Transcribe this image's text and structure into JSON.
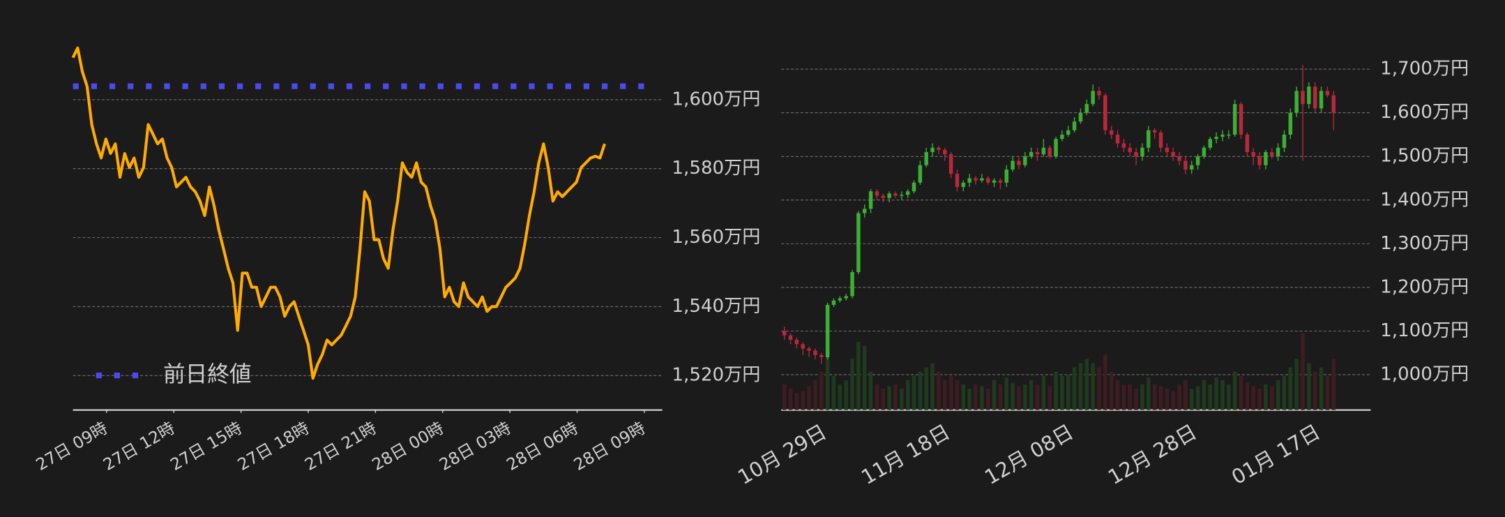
{
  "chart_data": [
    {
      "type": "line",
      "x": [
        7.5,
        7.71,
        7.92,
        8.13,
        8.34,
        8.55,
        8.76,
        8.97,
        9.18,
        9.39,
        9.6,
        9.81,
        10.02,
        10.23,
        10.44,
        10.65,
        10.86,
        11.07,
        11.28,
        11.49,
        11.7,
        11.91,
        12.12,
        12.33,
        12.54,
        12.75,
        12.96,
        13.17,
        13.38,
        13.59,
        13.8,
        14.01,
        14.22,
        14.43,
        14.64,
        14.85,
        15.06,
        15.27,
        15.48,
        15.69,
        15.9,
        16.11,
        16.32,
        16.53,
        16.74,
        16.95,
        17.16,
        17.37,
        17.58,
        17.79,
        18,
        18.21,
        18.42,
        18.63,
        18.84,
        19.05,
        19.26,
        19.47,
        19.68,
        19.89,
        20.1,
        20.31,
        20.52,
        20.73,
        20.94,
        21.15,
        21.36,
        21.57,
        21.78,
        21.99,
        22.2,
        22.41,
        22.62,
        22.83,
        23.04,
        23.25,
        23.46,
        23.67,
        23.88,
        24.09,
        24.3,
        24.51,
        24.72,
        24.93,
        25.14,
        25.35,
        25.56,
        25.77,
        25.98,
        26.19,
        26.4,
        26.61,
        26.82,
        27.03,
        27.24,
        27.45,
        27.66,
        27.87,
        28.08,
        28.29,
        28.5,
        28.71,
        28.92,
        29.13,
        29.34,
        29.55,
        29.76,
        29.97,
        30.18,
        30.39,
        30.6,
        30.81,
        31.02,
        31.23
      ],
      "series": [
        {
          "color": "#ffab00",
          "values": [
            1612.2,
            1615,
            1608.1,
            1603.9,
            1592.8,
            1587.2,
            1583.1,
            1588.6,
            1584.4,
            1587.2,
            1577.5,
            1584.4,
            1580.3,
            1583.1,
            1577.5,
            1580.3,
            1592.8,
            1590,
            1587.2,
            1588.6,
            1583.1,
            1580.3,
            1574.7,
            1576.1,
            1577.5,
            1574.7,
            1573.3,
            1570.6,
            1566.4,
            1574.7,
            1569.2,
            1562.2,
            1556.7,
            1551.1,
            1546.9,
            1533.1,
            1549.7,
            1549.7,
            1545.6,
            1545.6,
            1540,
            1542.8,
            1545.6,
            1545.6,
            1542.8,
            1537.2,
            1540,
            1541.4,
            1537.2,
            1533.1,
            1528.9,
            1519.2,
            1523.3,
            1526.1,
            1530.3,
            1528.9,
            1530.3,
            1531.7,
            1534.4,
            1537.2,
            1542.8,
            1556.7,
            1573.3,
            1570.6,
            1559.4,
            1559.4,
            1553.9,
            1551.1,
            1562.2,
            1570.6,
            1581.7,
            1578.9,
            1577.5,
            1581.7,
            1576.1,
            1574.7,
            1569.2,
            1565,
            1556.7,
            1542.8,
            1545.6,
            1541.4,
            1540,
            1546.9,
            1542.8,
            1541.4,
            1540,
            1542.8,
            1538.6,
            1540,
            1540,
            1542.8,
            1545.6,
            1546.9,
            1548.3,
            1551.1,
            1558.1,
            1566.4,
            1573.3,
            1581.7,
            1587.2,
            1580.3,
            1570.6,
            1573.3,
            1571.9,
            1573.3,
            1574.7,
            1576.1,
            1580.3,
            1581.7,
            1583.1,
            1583.6,
            1583.1,
            1587.2
          ]
        }
      ],
      "reference": {
        "name": "前日終値",
        "value": 1603.9,
        "color": "#4a4af0"
      },
      "legend": "lower left",
      "xlim": [
        7.5,
        33.8
      ],
      "xticks": [
        {
          "value": 9,
          "label": "27日 09時"
        },
        {
          "value": 12,
          "label": "27日 12時"
        },
        {
          "value": 15,
          "label": "27日 15時"
        },
        {
          "value": 18,
          "label": "27日 18時"
        },
        {
          "value": 21,
          "label": "27日 21時"
        },
        {
          "value": 24,
          "label": "28日 00時"
        },
        {
          "value": 27,
          "label": "28日 03時"
        },
        {
          "value": 30,
          "label": "28日 06時"
        },
        {
          "value": 33,
          "label": "28日 09時"
        }
      ],
      "ylim": [
        1510,
        1620
      ],
      "yticks": [
        {
          "value": 1520,
          "label": "1,520万円"
        },
        {
          "value": 1540,
          "label": "1,540万円"
        },
        {
          "value": 1560,
          "label": "1,560万円"
        },
        {
          "value": 1580,
          "label": "1,580万円"
        },
        {
          "value": 1600,
          "label": "1,600万円"
        }
      ],
      "grid": true
    },
    {
      "type": "candlestick",
      "categories": [
        null,
        null,
        null,
        null,
        null,
        null,
        "10月 29日",
        null,
        null,
        null,
        null,
        null,
        null,
        null,
        null,
        null,
        null,
        null,
        null,
        null,
        null,
        null,
        null,
        null,
        null,
        null,
        "11月 18日",
        null,
        null,
        null,
        null,
        null,
        null,
        null,
        null,
        null,
        null,
        null,
        null,
        null,
        null,
        null,
        null,
        null,
        null,
        null,
        "12月 08日",
        null,
        null,
        null,
        null,
        null,
        null,
        null,
        null,
        null,
        null,
        null,
        null,
        null,
        null,
        null,
        null,
        null,
        null,
        null,
        "12月 28日",
        null,
        null,
        null,
        null,
        null,
        null,
        null,
        null,
        null,
        null,
        null,
        null,
        null,
        null,
        null,
        null,
        null,
        null,
        null,
        "01月 17日",
        null,
        null,
        null
      ],
      "open": [
        1100,
        1090,
        1080,
        1070,
        1060,
        1055,
        1045,
        1040,
        1160,
        1170,
        1175,
        1180,
        1235,
        1370,
        1380,
        1420,
        1410,
        1405,
        1415,
        1410,
        1412,
        1420,
        1440,
        1480,
        1510,
        1520,
        1515,
        1505,
        1460,
        1430,
        1440,
        1450,
        1445,
        1450,
        1440,
        1445,
        1440,
        1470,
        1490,
        1480,
        1500,
        1510,
        1505,
        1520,
        1500,
        1540,
        1550,
        1560,
        1580,
        1600,
        1620,
        1650,
        1640,
        1560,
        1550,
        1530,
        1520,
        1510,
        1500,
        1520,
        1560,
        1555,
        1520,
        1510,
        1500,
        1490,
        1470,
        1480,
        1500,
        1520,
        1540,
        1545,
        1550,
        1550,
        1620,
        1550,
        1510,
        1500,
        1480,
        1510,
        1500,
        1520,
        1550,
        1600,
        1650,
        1620,
        1660,
        1610,
        1650,
        1640
      ],
      "high": [
        1110,
        1095,
        1085,
        1075,
        1065,
        1060,
        1050,
        1165,
        1175,
        1180,
        1185,
        1240,
        1375,
        1390,
        1425,
        1425,
        1415,
        1420,
        1420,
        1420,
        1425,
        1445,
        1490,
        1520,
        1530,
        1525,
        1520,
        1510,
        1470,
        1445,
        1460,
        1455,
        1460,
        1455,
        1450,
        1450,
        1480,
        1500,
        1500,
        1510,
        1520,
        1520,
        1540,
        1525,
        1545,
        1560,
        1570,
        1590,
        1610,
        1630,
        1665,
        1660,
        1645,
        1570,
        1560,
        1540,
        1530,
        1520,
        1530,
        1570,
        1565,
        1560,
        1530,
        1520,
        1510,
        1500,
        1490,
        1505,
        1525,
        1545,
        1555,
        1560,
        1560,
        1630,
        1625,
        1555,
        1520,
        1510,
        1515,
        1520,
        1530,
        1560,
        1610,
        1660,
        1710,
        1670,
        1670,
        1660,
        1660,
        1650
      ],
      "low": [
        1080,
        1070,
        1060,
        1045,
        1040,
        1035,
        1025,
        1035,
        1155,
        1165,
        1170,
        1175,
        1230,
        1360,
        1370,
        1400,
        1395,
        1395,
        1405,
        1400,
        1405,
        1415,
        1435,
        1475,
        1500,
        1505,
        1490,
        1450,
        1420,
        1420,
        1430,
        1435,
        1440,
        1435,
        1430,
        1425,
        1430,
        1465,
        1470,
        1475,
        1495,
        1490,
        1500,
        1495,
        1495,
        1535,
        1545,
        1555,
        1575,
        1595,
        1615,
        1630,
        1550,
        1540,
        1520,
        1510,
        1500,
        1480,
        1490,
        1510,
        1540,
        1510,
        1500,
        1490,
        1480,
        1460,
        1460,
        1470,
        1495,
        1515,
        1530,
        1535,
        1540,
        1545,
        1540,
        1500,
        1480,
        1470,
        1470,
        1495,
        1490,
        1510,
        1540,
        1590,
        1490,
        1610,
        1600,
        1600,
        1635,
        1560
      ],
      "close": [
        1090,
        1080,
        1070,
        1060,
        1055,
        1045,
        1040,
        1160,
        1170,
        1175,
        1180,
        1235,
        1370,
        1380,
        1420,
        1410,
        1405,
        1415,
        1410,
        1412,
        1420,
        1440,
        1480,
        1510,
        1520,
        1515,
        1505,
        1460,
        1430,
        1440,
        1450,
        1445,
        1450,
        1440,
        1445,
        1440,
        1470,
        1490,
        1480,
        1500,
        1510,
        1505,
        1520,
        1500,
        1540,
        1550,
        1560,
        1580,
        1600,
        1620,
        1650,
        1640,
        1560,
        1550,
        1530,
        1520,
        1510,
        1500,
        1520,
        1560,
        1555,
        1520,
        1510,
        1500,
        1490,
        1470,
        1480,
        1500,
        1520,
        1540,
        1545,
        1550,
        1550,
        1620,
        1550,
        1510,
        1500,
        1480,
        1510,
        1500,
        1520,
        1550,
        1600,
        1650,
        1620,
        1660,
        1610,
        1650,
        1640,
        1600
      ],
      "volume": [
        30,
        25,
        20,
        22,
        28,
        35,
        45,
        70,
        40,
        30,
        35,
        60,
        80,
        75,
        45,
        30,
        25,
        28,
        30,
        25,
        35,
        40,
        45,
        50,
        55,
        45,
        35,
        40,
        35,
        30,
        25,
        30,
        28,
        25,
        35,
        30,
        38,
        32,
        28,
        30,
        35,
        30,
        40,
        28,
        45,
        40,
        42,
        50,
        55,
        60,
        55,
        50,
        65,
        45,
        35,
        30,
        30,
        25,
        30,
        38,
        30,
        28,
        25,
        22,
        30,
        35,
        25,
        28,
        35,
        30,
        38,
        35,
        30,
        45,
        40,
        32,
        28,
        25,
        30,
        28,
        35,
        40,
        50,
        60,
        90,
        55,
        45,
        50,
        40,
        60
      ],
      "up_color": "#3cb034",
      "down_color": "#b8283c",
      "volume_up_color": "#1f3a1f",
      "volume_down_color": "#3f1c22",
      "ylim": [
        919,
        1722
      ],
      "yticks": [
        {
          "value": 1000,
          "label": "1,000万円"
        },
        {
          "value": 1100,
          "label": "1,100万円"
        },
        {
          "value": 1200,
          "label": "1,200万円"
        },
        {
          "value": 1300,
          "label": "1,300万円"
        },
        {
          "value": 1400,
          "label": "1,400万円"
        },
        {
          "value": 1500,
          "label": "1,500万円"
        },
        {
          "value": 1600,
          "label": "1,600万円"
        },
        {
          "value": 1700,
          "label": "1,700万円"
        }
      ],
      "grid": true
    }
  ]
}
